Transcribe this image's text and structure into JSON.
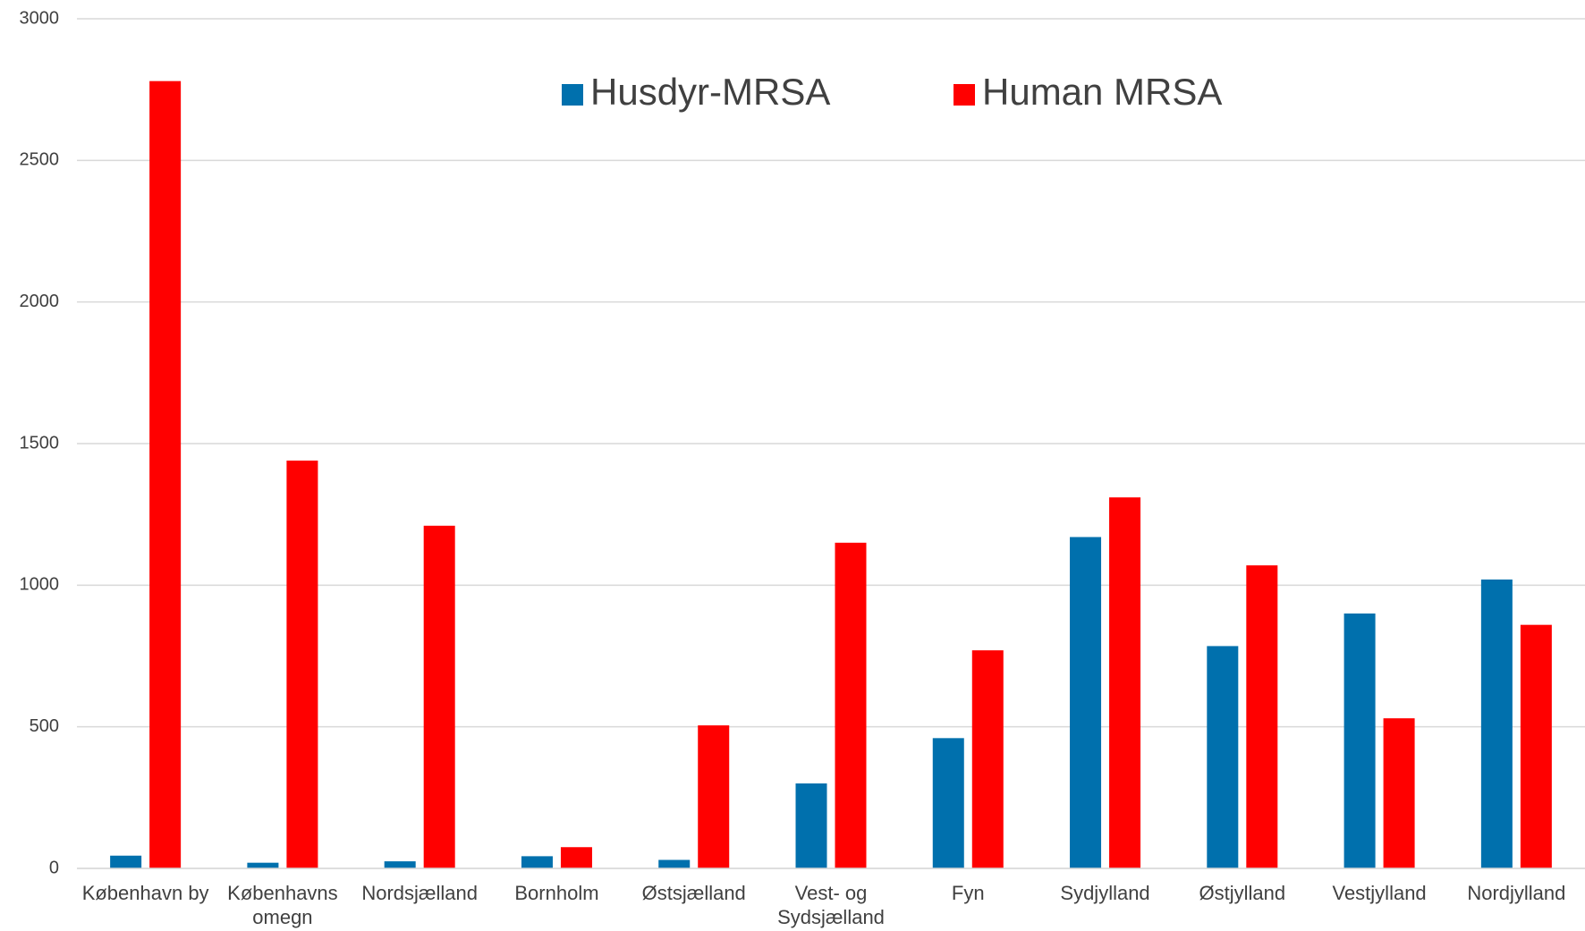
{
  "chart_data": {
    "type": "bar",
    "categories": [
      "København by",
      "Københavns omegn",
      "Nordsjælland",
      "Bornholm",
      "Østsjælland",
      "Vest- og Sydsjælland",
      "Fyn",
      "Sydjylland",
      "Østjylland",
      "Vestjylland",
      "Nordjylland"
    ],
    "series": [
      {
        "name": "Husdyr-MRSA",
        "color": "#0070ad",
        "values": [
          45,
          20,
          25,
          43,
          30,
          300,
          460,
          1170,
          785,
          900,
          1020
        ]
      },
      {
        "name": "Human MRSA",
        "color": "#ff0000",
        "values": [
          2780,
          1440,
          1210,
          75,
          505,
          1150,
          770,
          1310,
          1070,
          530,
          860
        ]
      }
    ],
    "ylim": [
      0,
      3000
    ],
    "yticks": [
      0,
      500,
      1000,
      1500,
      2000,
      2500,
      3000
    ],
    "grid": true,
    "legend": "top"
  }
}
